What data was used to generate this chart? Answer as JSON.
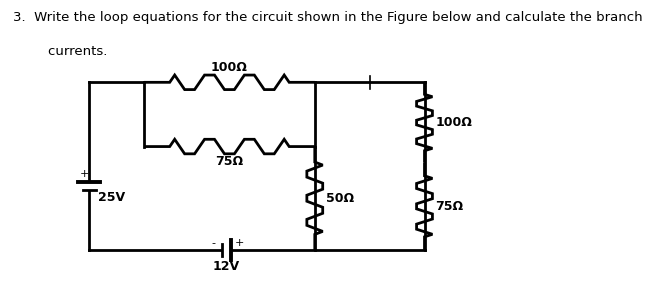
{
  "title_line1": "3.  Write the loop equations for the circuit shown in the Figure below and calculate the branch",
  "title_line2": "    currents.",
  "text_color": "#000000",
  "bg_color": "#ffffff",
  "lw": 2.0,
  "label_100_top": "100Ω",
  "label_75_mid": "75Ω",
  "label_50": "50Ω",
  "label_100_right": "100Ω",
  "label_75_right": "75Ω",
  "label_25V": "25V",
  "label_12V": "12V",
  "fs_label": 9,
  "fs_title": 9.5,
  "xL": 1.3,
  "xIL": 2.2,
  "xIR": 5.0,
  "xR": 6.8,
  "yT": 3.7,
  "yMB": 2.55,
  "yB": 0.7
}
